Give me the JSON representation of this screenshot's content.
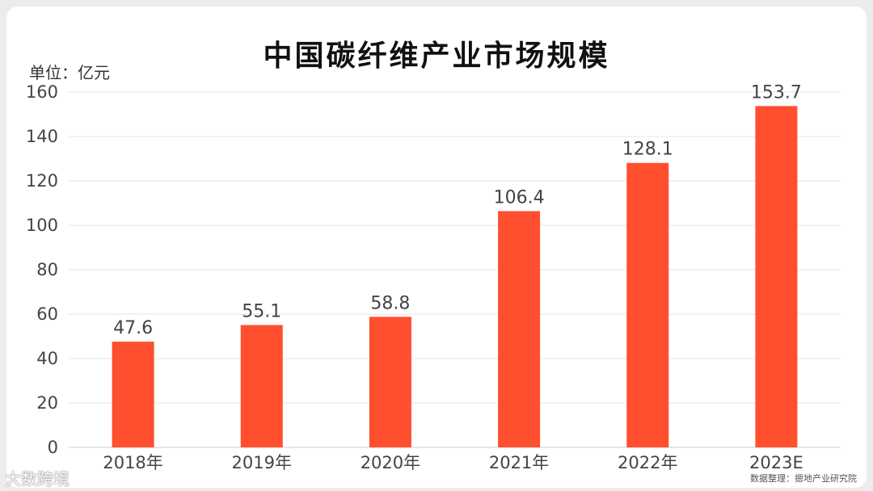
{
  "chart_data": {
    "type": "bar",
    "title": "中国碳纤维产业市场规模",
    "unit_label": "单位：亿元",
    "categories": [
      "2018年",
      "2019年",
      "2020年",
      "2021年",
      "2022年",
      "2023E"
    ],
    "values": [
      47.6,
      55.1,
      58.8,
      106.4,
      128.1,
      153.7
    ],
    "value_labels": [
      "47.6",
      "55.1",
      "58.8",
      "106.4",
      "128.1",
      "153.7"
    ],
    "yticks": [
      "0",
      "20",
      "40",
      "60",
      "80",
      "100",
      "120",
      "140",
      "160"
    ],
    "ylim": [
      0,
      160
    ],
    "grid": true,
    "bar_color": "#ff4f2e",
    "grid_color": "#e6e6e6"
  },
  "source_note": "数据整理：摁地产业研究院",
  "brand": "大数跨境"
}
